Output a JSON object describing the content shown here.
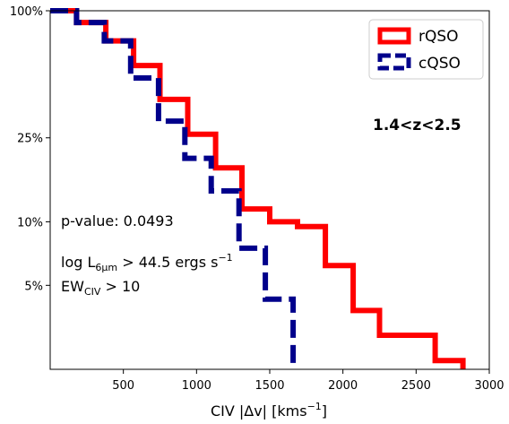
{
  "chart_data": {
    "type": "line",
    "title": "",
    "xlabel_main": "CIV |Δv| [kms",
    "xlabel_sup": "−1",
    "xlabel_close": "]",
    "ylabel": "",
    "xlim": [
      0,
      3000
    ],
    "ylim": [
      0.02,
      1.0
    ],
    "yscale": "log",
    "grid": false,
    "legend_position": "top-right",
    "x_ticks": [
      {
        "value": 500,
        "label": "500"
      },
      {
        "value": 1000,
        "label": "1000"
      },
      {
        "value": 1500,
        "label": "1500"
      },
      {
        "value": 2000,
        "label": "2000"
      },
      {
        "value": 2500,
        "label": "2500"
      },
      {
        "value": 3000,
        "label": "3000"
      }
    ],
    "y_ticks": [
      {
        "value": 1.0,
        "label": "100%"
      },
      {
        "value": 0.25,
        "label": "25%"
      },
      {
        "value": 0.1,
        "label": "10%"
      },
      {
        "value": 0.05,
        "label": "5%"
      }
    ],
    "series": [
      {
        "name": "rQSO",
        "color": "#ff0000",
        "style": "solid",
        "x": [
          0,
          180,
          180,
          380,
          380,
          570,
          570,
          750,
          750,
          940,
          940,
          1130,
          1130,
          1310,
          1310,
          1500,
          1500,
          1690,
          1690,
          1880,
          1880,
          2070,
          2070,
          2250,
          2250,
          2630,
          2630,
          2820,
          2820
        ],
        "y": [
          1.0,
          1.0,
          0.88,
          0.88,
          0.72,
          0.72,
          0.55,
          0.55,
          0.38,
          0.38,
          0.26,
          0.26,
          0.18,
          0.18,
          0.115,
          0.115,
          0.1,
          0.1,
          0.095,
          0.095,
          0.062,
          0.062,
          0.038,
          0.038,
          0.029,
          0.029,
          0.022,
          0.022,
          0.02
        ]
      },
      {
        "name": "cQSO",
        "color": "#00008b",
        "style": "dashed",
        "x": [
          0,
          180,
          180,
          370,
          370,
          550,
          550,
          740,
          740,
          920,
          920,
          1100,
          1100,
          1290,
          1290,
          1470,
          1470,
          1660,
          1660
        ],
        "y": [
          1.0,
          1.0,
          0.88,
          0.88,
          0.72,
          0.72,
          0.48,
          0.48,
          0.3,
          0.3,
          0.2,
          0.2,
          0.14,
          0.14,
          0.075,
          0.075,
          0.043,
          0.043,
          0.02
        ]
      }
    ],
    "annotations": {
      "redshift": "1.4<z<2.5",
      "pvalue": "p-value: 0.0493",
      "lum_prefix": "log L",
      "lum_sub": "6μm",
      "lum_suffix": " > 44.5 ergs s",
      "lum_sup": "−1",
      "ew_prefix": "EW",
      "ew_sub": "CIV",
      "ew_suffix": " > 10"
    }
  }
}
